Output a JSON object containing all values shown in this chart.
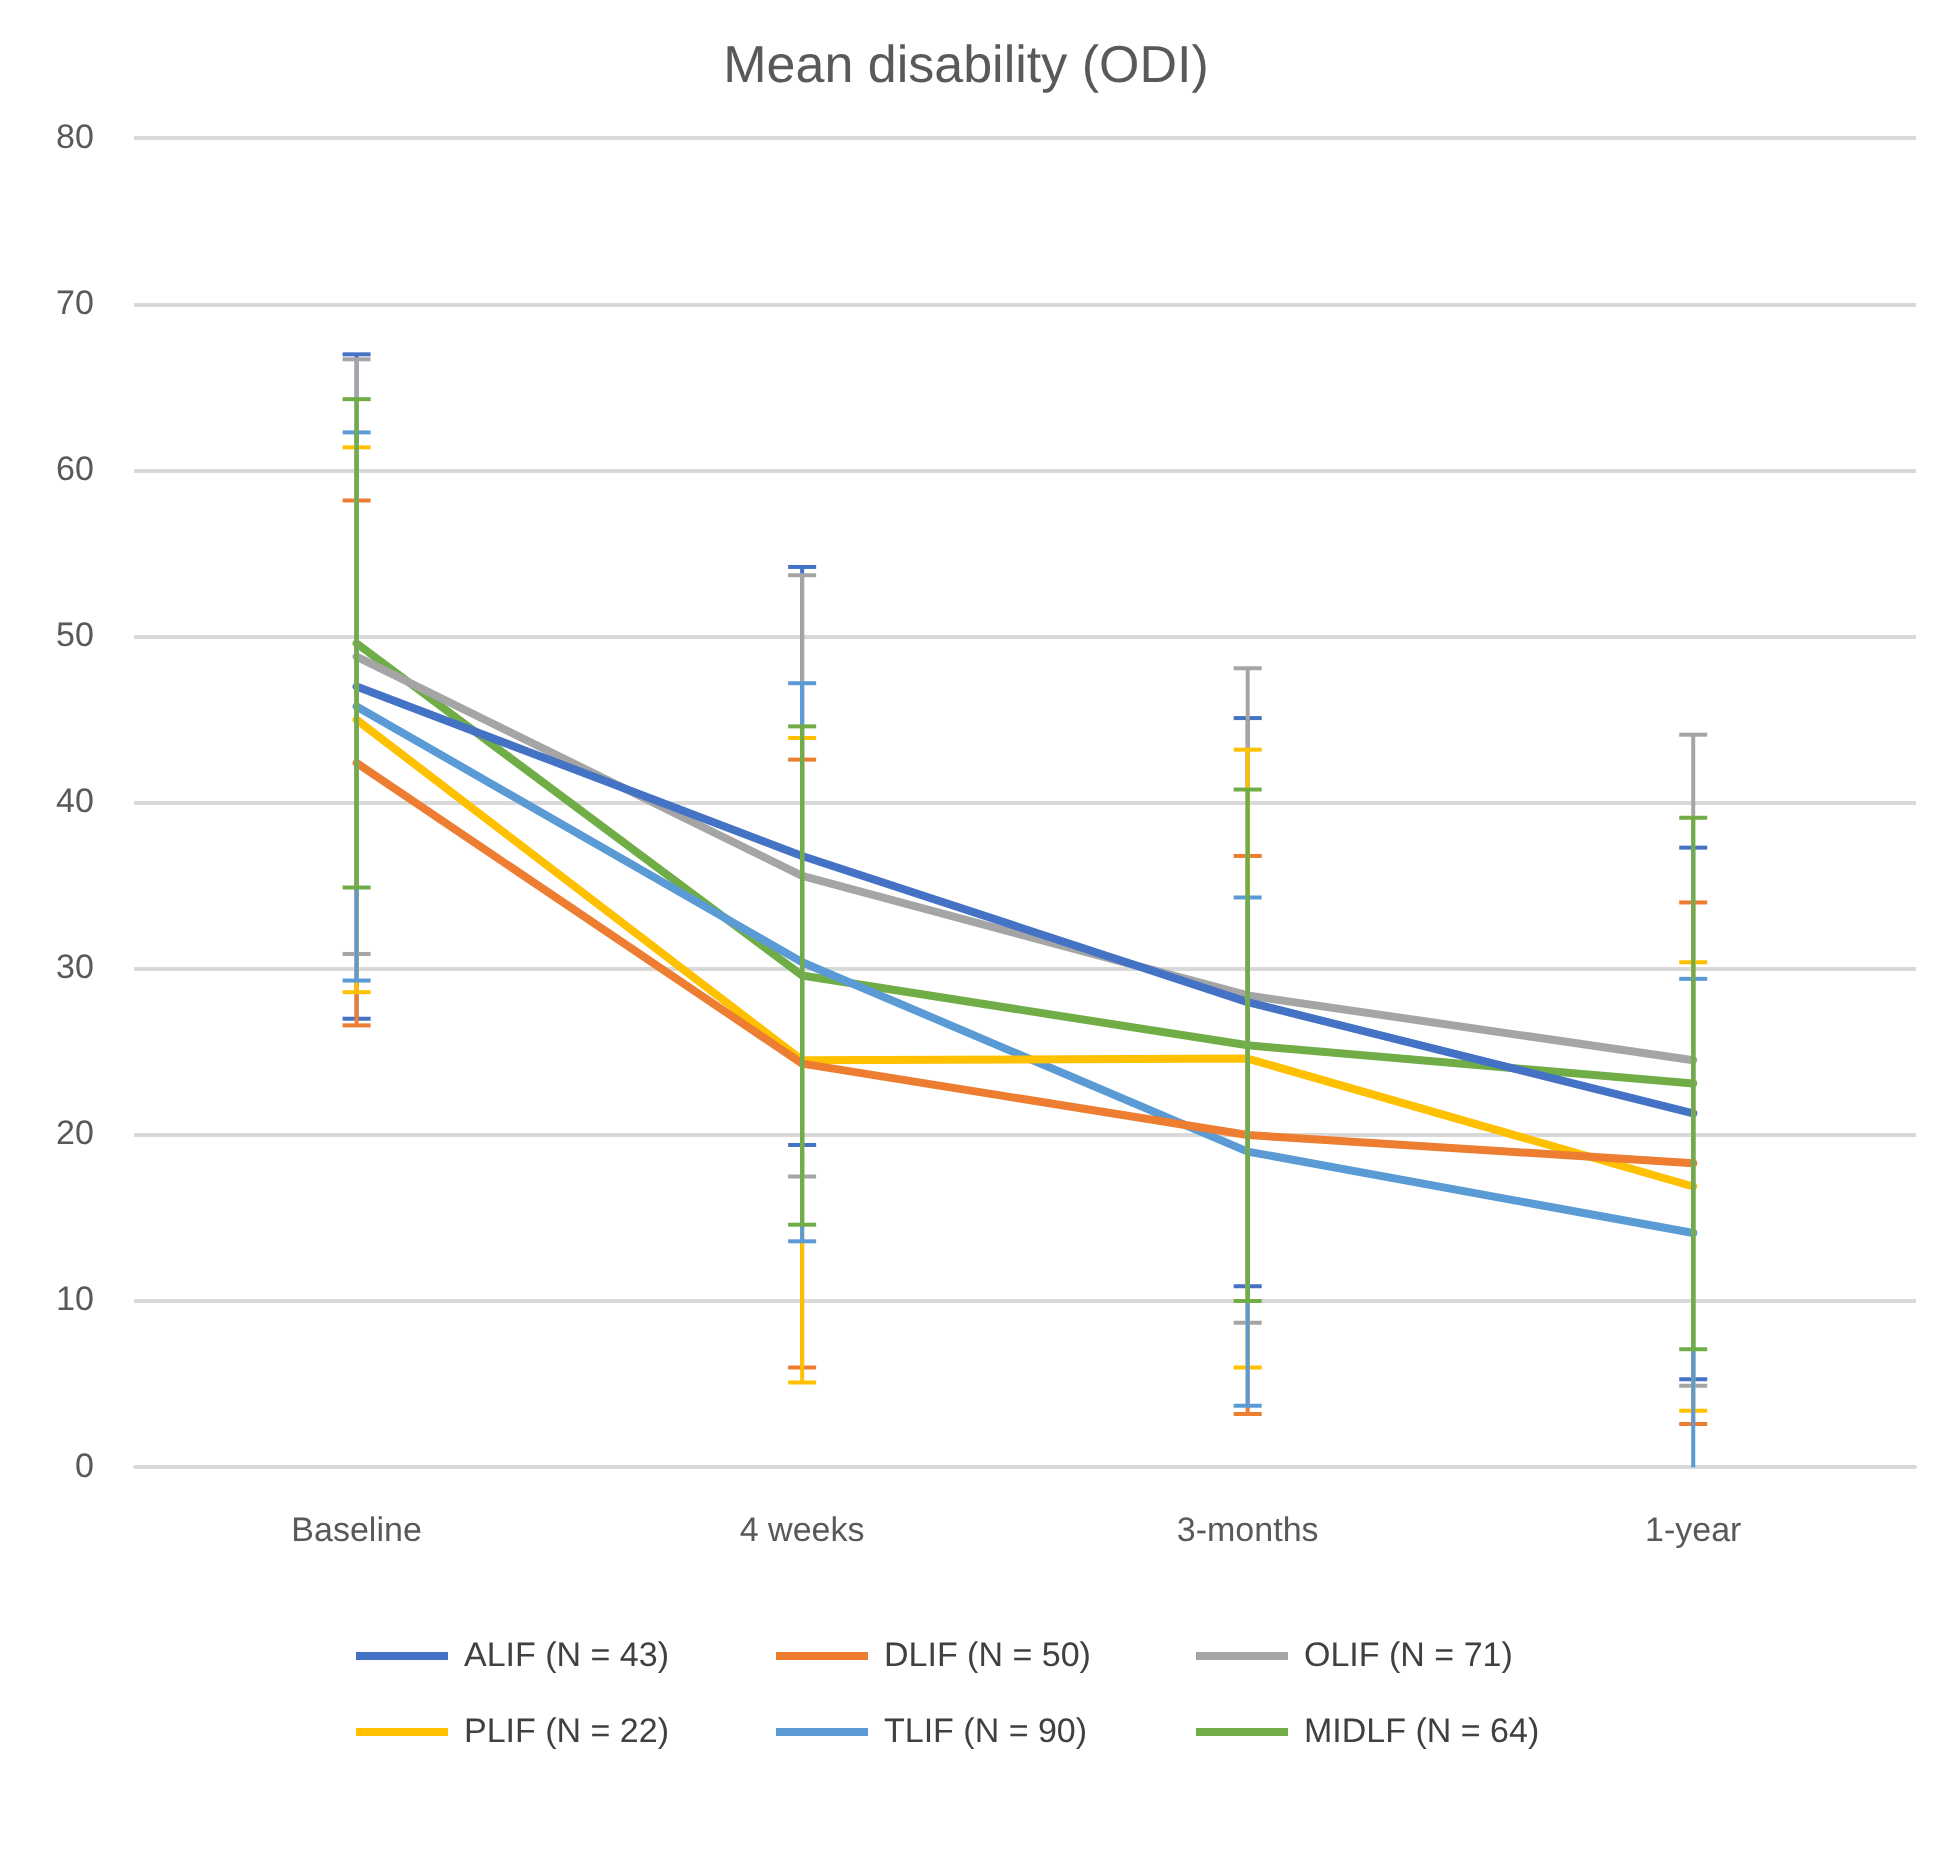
{
  "chart_data": {
    "type": "line",
    "title": "Mean disability (ODI)",
    "categories": [
      "Baseline",
      "4 weeks",
      "3-months",
      "1-year"
    ],
    "series": [
      {
        "name": "ALIF (N = 43)",
        "color": "#4472c4",
        "values": [
          47.0,
          36.8,
          28.0,
          21.3
        ],
        "errors": [
          20.0,
          17.4,
          17.1,
          16.0
        ]
      },
      {
        "name": "DLIF (N = 50)",
        "color": "#ed7d31",
        "values": [
          42.4,
          24.3,
          20.0,
          18.3
        ],
        "errors": [
          15.8,
          18.3,
          16.8,
          15.7
        ]
      },
      {
        "name": "OLIF (N = 71)",
        "color": "#a5a5a5",
        "values": [
          48.8,
          35.6,
          28.4,
          24.5
        ],
        "errors": [
          17.9,
          18.1,
          19.7,
          19.6
        ]
      },
      {
        "name": "PLIF (N = 22)",
        "color": "#ffc000",
        "values": [
          45.0,
          24.5,
          24.6,
          16.9
        ],
        "errors": [
          16.4,
          19.4,
          18.6,
          13.5
        ]
      },
      {
        "name": "TLIF (N = 90)",
        "color": "#5b9bd5",
        "values": [
          45.8,
          30.4,
          19.0,
          14.1
        ],
        "errors": [
          16.5,
          16.8,
          15.3,
          15.3
        ]
      },
      {
        "name": "MIDLF (N = 64)",
        "color": "#70ad47",
        "values": [
          49.6,
          29.6,
          25.4,
          23.1
        ],
        "errors": [
          14.7,
          15.0,
          15.4,
          16.0
        ]
      }
    ],
    "ylim": [
      0,
      80
    ],
    "yticks": [
      0,
      10,
      20,
      30,
      40,
      50,
      60,
      70,
      80
    ],
    "grid": "y",
    "legend": "bottom",
    "marker": "none",
    "line_style": "solid"
  }
}
